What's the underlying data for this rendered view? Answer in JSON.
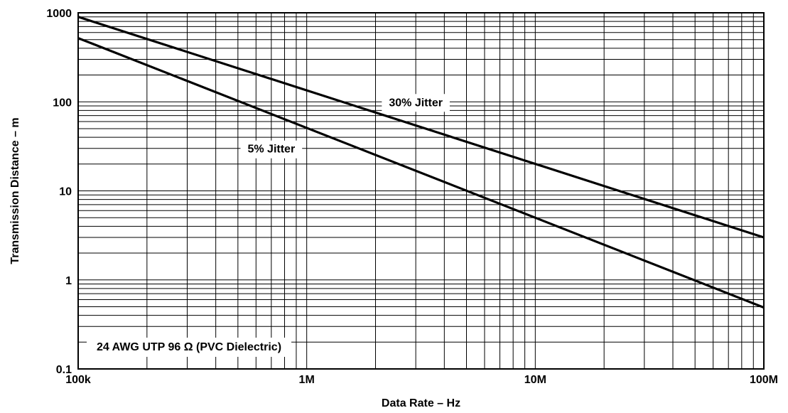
{
  "chart_data": {
    "type": "line",
    "xlabel": "Data Rate – Hz",
    "ylabel": "Transmission Distance – m",
    "x_scale": "log",
    "y_scale": "log",
    "xlim": [
      100000,
      100000000
    ],
    "ylim": [
      0.1,
      1000
    ],
    "grid": true,
    "x_ticks": [
      {
        "value": 100000,
        "label": "100k"
      },
      {
        "value": 1000000,
        "label": "1M"
      },
      {
        "value": 10000000,
        "label": "10M"
      },
      {
        "value": 100000000,
        "label": "100M"
      }
    ],
    "y_ticks": [
      {
        "value": 0.1,
        "label": "0.1"
      },
      {
        "value": 1,
        "label": "1"
      },
      {
        "value": 10,
        "label": "10"
      },
      {
        "value": 100,
        "label": "100"
      },
      {
        "value": 1000,
        "label": "1000"
      }
    ],
    "series": [
      {
        "name": "30% Jitter",
        "label_at": [
          3000000,
          100
        ],
        "x": [
          100000,
          100000000
        ],
        "y": [
          900,
          3
        ]
      },
      {
        "name": "5% Jitter",
        "label_at": [
          700000,
          30
        ],
        "x": [
          100000,
          100000000
        ],
        "y": [
          520,
          0.49
        ]
      }
    ],
    "annotation": {
      "text": "24 AWG UTP 96 Ω (PVC Dielectric)",
      "anchor": "bottom-left"
    }
  }
}
